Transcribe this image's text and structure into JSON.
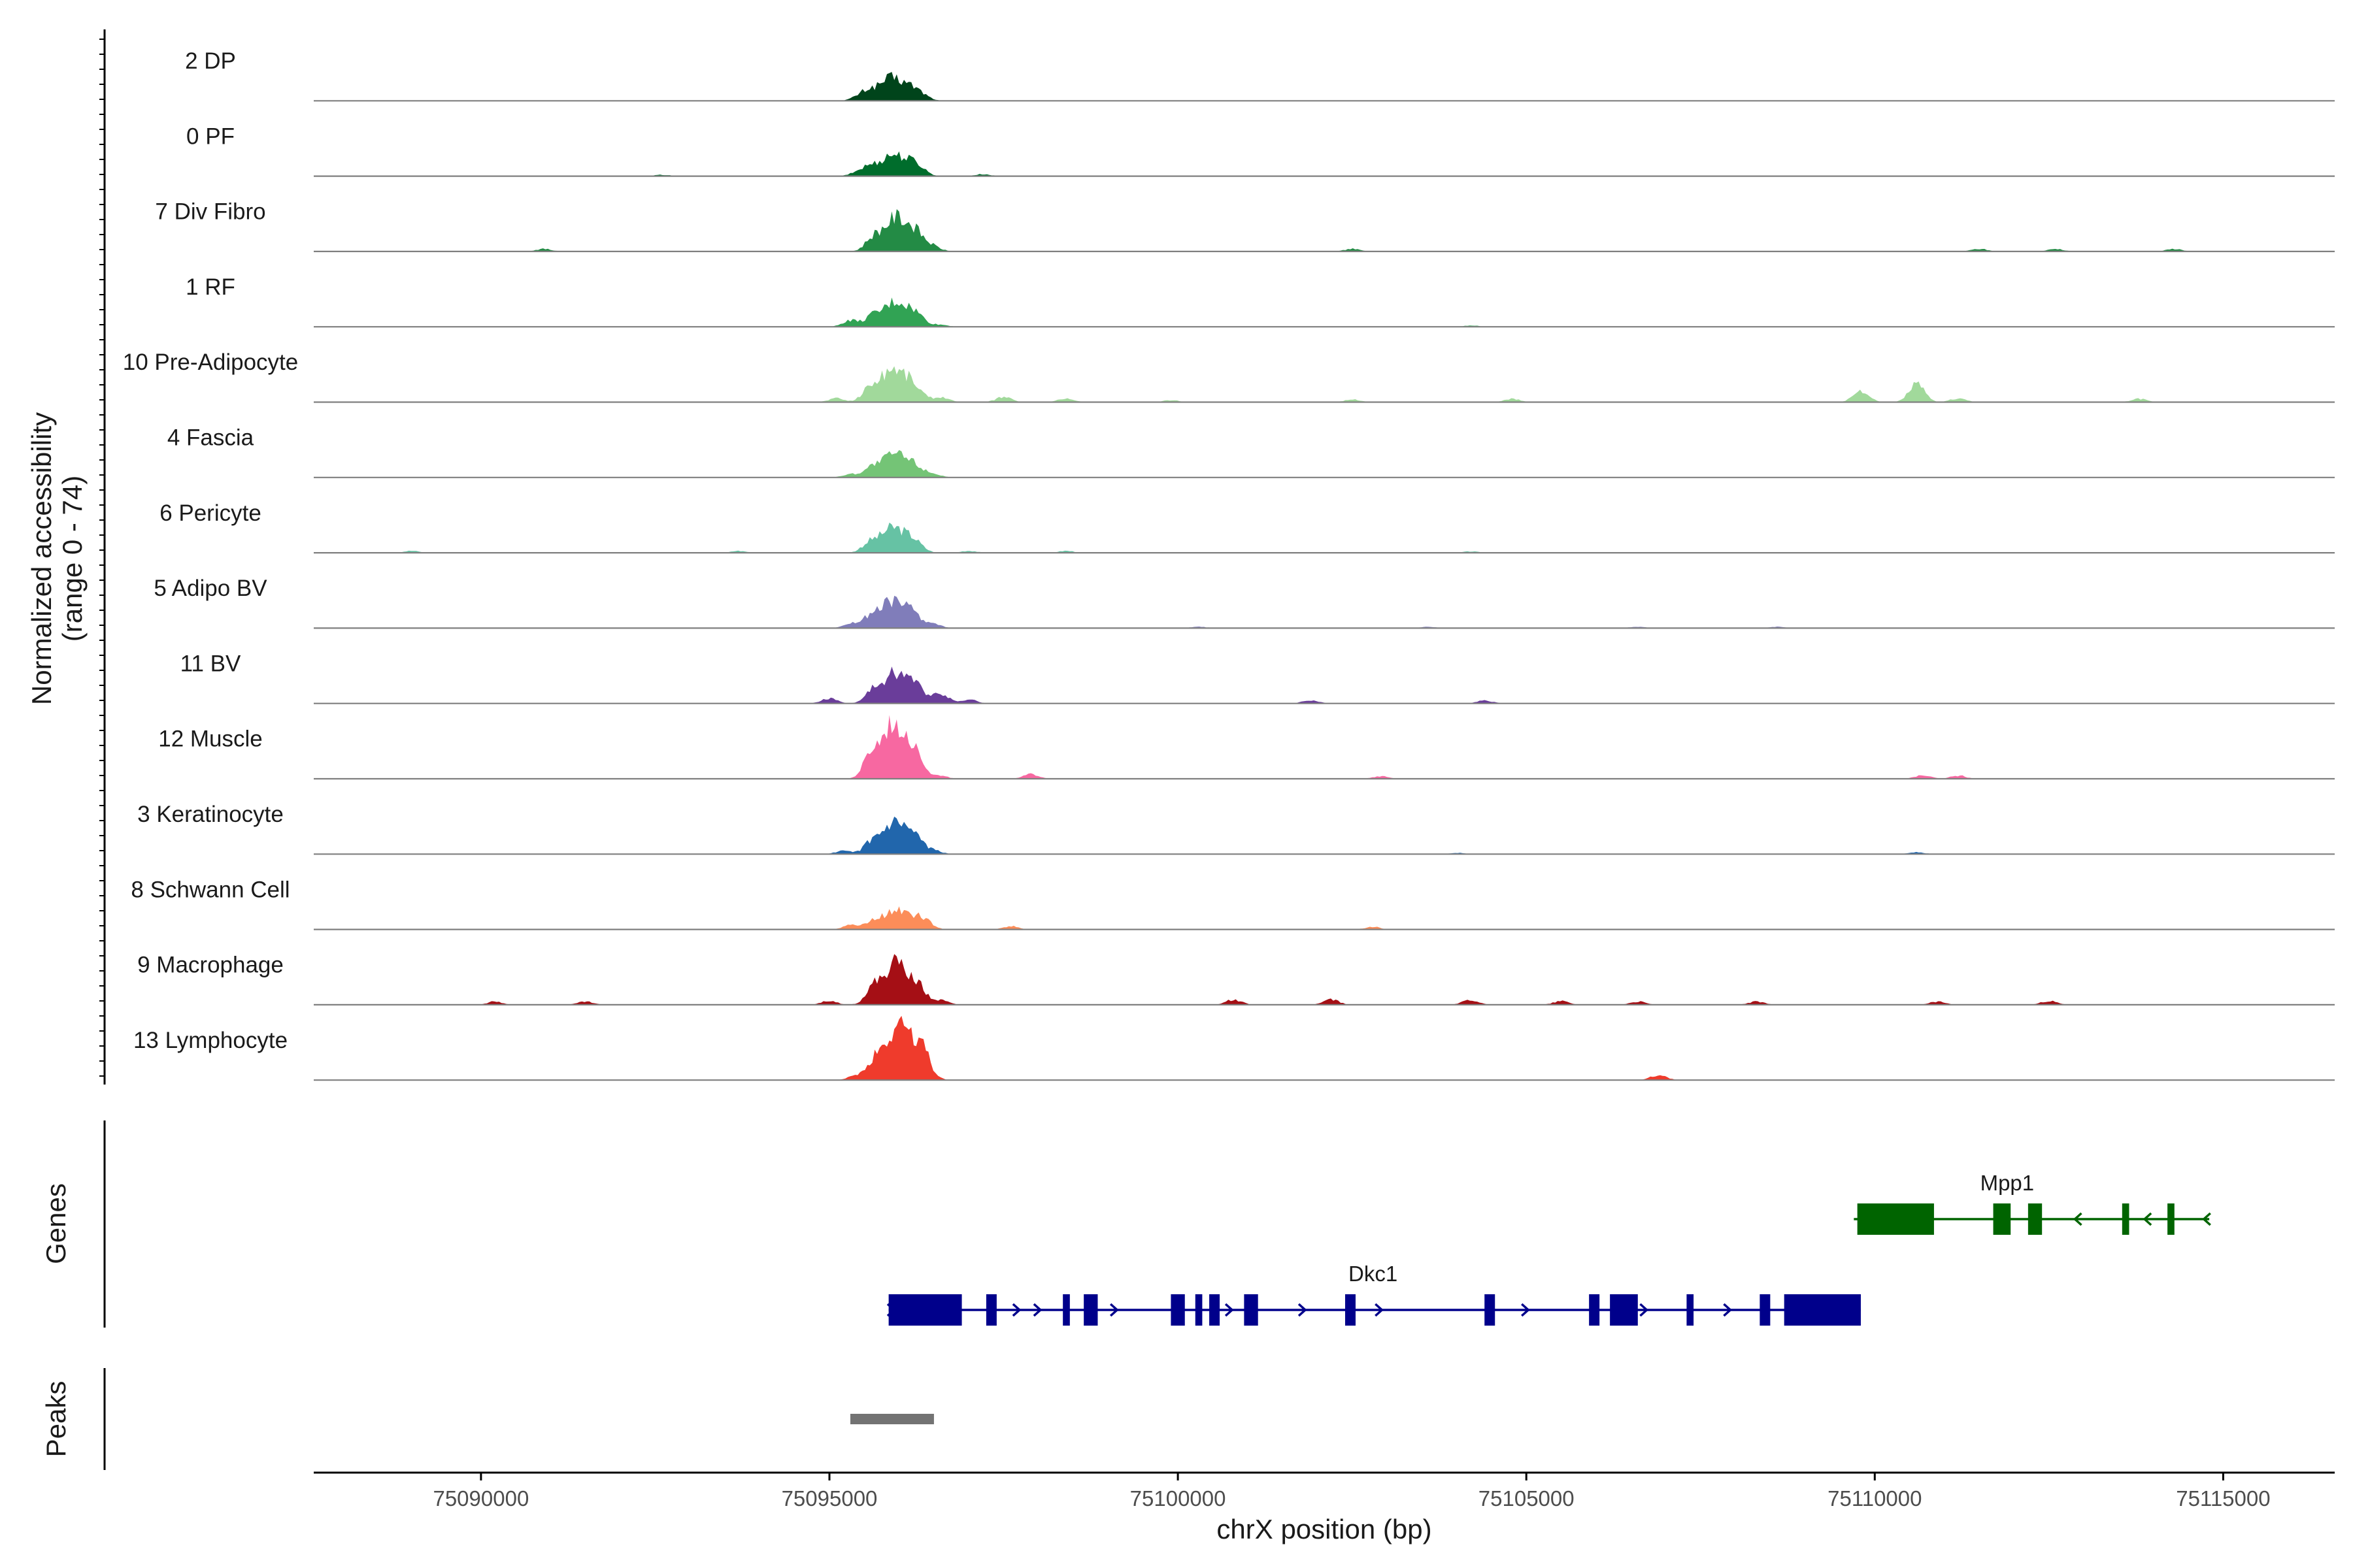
{
  "chart_data": {
    "type": "area",
    "region": {
      "chromosome": "chrX",
      "start": 75087600,
      "end": 75116600
    },
    "y_axis_title": "Normalized accessibility",
    "y_axis_subtitle": "(range 0 - 74)",
    "y_range": [
      0,
      74
    ],
    "x_axis_title": "chrX position (bp)",
    "x_ticks": [
      75090000,
      75095000,
      75100000,
      75105000,
      75110000,
      75115000
    ],
    "x_tick_labels": [
      "75090000",
      "75095000",
      "75100000",
      "75105000",
      "75110000",
      "75115000"
    ],
    "track_labels": {
      "genes": "Genes",
      "peaks": "Peaks"
    },
    "series": [
      {
        "name": "2 DP",
        "color": "#00441b",
        "main_peak": {
          "center": 75095880,
          "height": 0.35
        },
        "minor_peaks": [
          [
            75095400,
            0.04
          ],
          [
            75096350,
            0.05
          ]
        ]
      },
      {
        "name": "0 PF",
        "color": "#006d2c",
        "main_peak": {
          "center": 75095900,
          "height": 0.33
        },
        "minor_peaks": [
          [
            75095400,
            0.05
          ],
          [
            75096300,
            0.05
          ],
          [
            75097200,
            0.03
          ],
          [
            75092600,
            0.02
          ]
        ]
      },
      {
        "name": "7 Div Fibro",
        "color": "#238b45",
        "main_peak": {
          "center": 75095950,
          "height": 0.52
        },
        "minor_peaks": [
          [
            75090900,
            0.04
          ],
          [
            75096500,
            0.06
          ],
          [
            75102500,
            0.04
          ],
          [
            75111500,
            0.04
          ],
          [
            75112600,
            0.04
          ],
          [
            75114300,
            0.04
          ]
        ]
      },
      {
        "name": "1 RF",
        "color": "#31a354",
        "main_peak": {
          "center": 75095940,
          "height": 0.38
        },
        "minor_peaks": [
          [
            75095300,
            0.1
          ],
          [
            75096600,
            0.03
          ],
          [
            75104200,
            0.02
          ]
        ]
      },
      {
        "name": "10 Pre-Adipocyte",
        "color": "#a1d99b",
        "main_peak": {
          "center": 75095900,
          "height": 0.52
        },
        "minor_peaks": [
          [
            75095100,
            0.06
          ],
          [
            75096600,
            0.08
          ],
          [
            75097500,
            0.08
          ],
          [
            75098400,
            0.06
          ],
          [
            75099900,
            0.03
          ],
          [
            75102500,
            0.04
          ],
          [
            75104800,
            0.05
          ],
          [
            75109800,
            0.18
          ],
          [
            75110600,
            0.28
          ],
          [
            75111200,
            0.06
          ],
          [
            75113800,
            0.05
          ]
        ]
      },
      {
        "name": "4 Fascia",
        "color": "#74c476",
        "main_peak": {
          "center": 75095920,
          "height": 0.36
        },
        "minor_peaks": [
          [
            75095300,
            0.05
          ],
          [
            75096500,
            0.05
          ]
        ]
      },
      {
        "name": "6 Pericyte",
        "color": "#66c2a4",
        "main_peak": {
          "center": 75095900,
          "height": 0.38
        },
        "minor_peaks": [
          [
            75089000,
            0.03
          ],
          [
            75093700,
            0.03
          ],
          [
            75097000,
            0.03
          ],
          [
            75098400,
            0.03
          ],
          [
            75104200,
            0.02
          ]
        ]
      },
      {
        "name": "5 Adipo BV",
        "color": "#807dba",
        "main_peak": {
          "center": 75095900,
          "height": 0.42
        },
        "minor_peaks": [
          [
            75095300,
            0.07
          ],
          [
            75096500,
            0.06
          ],
          [
            75100300,
            0.02
          ],
          [
            75103600,
            0.02
          ],
          [
            75106600,
            0.02
          ],
          [
            75108600,
            0.02
          ]
        ]
      },
      {
        "name": "11 BV",
        "color": "#6a3d9a",
        "main_peak": {
          "center": 75095950,
          "height": 0.48
        },
        "minor_peaks": [
          [
            75095000,
            0.08
          ],
          [
            75096600,
            0.16
          ],
          [
            75097000,
            0.06
          ],
          [
            75101900,
            0.05
          ],
          [
            75104400,
            0.05
          ]
        ]
      },
      {
        "name": "12 Muscle",
        "color": "#f768a1",
        "main_peak": {
          "center": 75095920,
          "height": 0.85
        },
        "minor_peaks": [
          [
            75096600,
            0.04
          ],
          [
            75097900,
            0.07
          ],
          [
            75102900,
            0.04
          ],
          [
            75110700,
            0.06
          ],
          [
            75111200,
            0.05
          ]
        ]
      },
      {
        "name": "3 Keratinocyte",
        "color": "#2166ac",
        "main_peak": {
          "center": 75095930,
          "height": 0.45
        },
        "minor_peaks": [
          [
            75095200,
            0.05
          ],
          [
            75096500,
            0.05
          ],
          [
            75104000,
            0.02
          ],
          [
            75110600,
            0.03
          ]
        ]
      },
      {
        "name": "8 Schwann Cell",
        "color": "#fc8d59",
        "main_peak": {
          "center": 75095950,
          "height": 0.3
        },
        "minor_peaks": [
          [
            75095300,
            0.07
          ],
          [
            75096400,
            0.07
          ],
          [
            75097600,
            0.05
          ],
          [
            75102800,
            0.04
          ]
        ]
      },
      {
        "name": "9 Macrophage",
        "color": "#a50f15",
        "main_peak": {
          "center": 75095950,
          "height": 0.62
        },
        "minor_peaks": [
          [
            75090200,
            0.05
          ],
          [
            75091500,
            0.05
          ],
          [
            75095000,
            0.06
          ],
          [
            75096600,
            0.07
          ],
          [
            75100800,
            0.08
          ],
          [
            75102200,
            0.08
          ],
          [
            75104200,
            0.08
          ],
          [
            75105500,
            0.06
          ],
          [
            75106600,
            0.05
          ],
          [
            75108300,
            0.05
          ],
          [
            75110900,
            0.05
          ],
          [
            75112500,
            0.06
          ]
        ]
      },
      {
        "name": "13 Lymphocyte",
        "color": "#ef3b2c",
        "main_peak": {
          "center": 75096000,
          "height": 0.85
        },
        "minor_peaks": [
          [
            75095400,
            0.08
          ],
          [
            75096400,
            0.07
          ],
          [
            75106900,
            0.08
          ]
        ]
      }
    ],
    "genes": [
      {
        "name": "Dkc1",
        "color": "#00008b",
        "strand": "+",
        "start": 75095850,
        "end": 75109800,
        "label_position": 75102800,
        "exons": [
          [
            75095850,
            75096900
          ],
          [
            75097250,
            75097400
          ],
          [
            75098350,
            75098450
          ],
          [
            75098650,
            75098850
          ],
          [
            75099900,
            75100100
          ],
          [
            75100250,
            75100350
          ],
          [
            75100450,
            75100600
          ],
          [
            75100950,
            75101150
          ],
          [
            75102400,
            75102550
          ],
          [
            75104400,
            75104550
          ],
          [
            75105900,
            75106050
          ],
          [
            75106200,
            75106600
          ],
          [
            75107300,
            75107400
          ],
          [
            75108350,
            75108500
          ],
          [
            75108700,
            75109800
          ]
        ],
        "arrows": [
          75095900,
          75097700,
          75098000,
          75099100,
          75100750,
          75101800,
          75102900,
          75105000,
          75106700,
          75107900
        ]
      },
      {
        "name": "Mpp1",
        "color": "#006400",
        "strand": "-",
        "start": 75109700,
        "end": 75114800,
        "label_position": 75111900,
        "exons": [
          [
            75109750,
            75110850
          ],
          [
            75111700,
            75111950
          ],
          [
            75112200,
            75112400
          ],
          [
            75113550,
            75113650
          ],
          [
            75114200,
            75114300
          ]
        ],
        "arrows": [
          75112900,
          75113900,
          75114750
        ]
      }
    ],
    "peaks": [
      {
        "start": 75095300,
        "end": 75096500,
        "color": "#737373"
      }
    ]
  }
}
